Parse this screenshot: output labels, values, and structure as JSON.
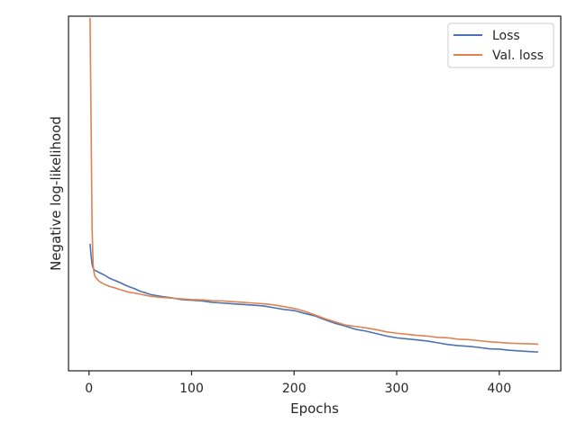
{
  "chart_data": {
    "type": "line",
    "title": "",
    "xlabel": "Epochs",
    "ylabel": "Negative log-likelihood",
    "xlim": [
      -20,
      460
    ],
    "xticks": [
      0,
      100,
      200,
      300,
      400
    ],
    "ylim": [
      0,
      1
    ],
    "yticks_visible": false,
    "grid": false,
    "legend_position": "top-right",
    "series": [
      {
        "name": "Loss",
        "color": "#4c72b0",
        "x": [
          1,
          2,
          3,
          4,
          5,
          6,
          8,
          10,
          15,
          20,
          25,
          30,
          35,
          40,
          45,
          50,
          55,
          60,
          70,
          80,
          90,
          100,
          110,
          120,
          130,
          140,
          150,
          160,
          170,
          180,
          190,
          200,
          210,
          220,
          230,
          240,
          250,
          260,
          270,
          280,
          290,
          300,
          310,
          320,
          330,
          340,
          350,
          360,
          370,
          380,
          390,
          400,
          410,
          420,
          430,
          438
        ],
        "y": [
          0.358,
          0.325,
          0.3,
          0.29,
          0.285,
          0.283,
          0.28,
          0.277,
          0.27,
          0.261,
          0.255,
          0.249,
          0.242,
          0.236,
          0.231,
          0.224,
          0.22,
          0.215,
          0.21,
          0.206,
          0.201,
          0.199,
          0.197,
          0.193,
          0.191,
          0.189,
          0.187,
          0.185,
          0.183,
          0.178,
          0.173,
          0.17,
          0.162,
          0.155,
          0.144,
          0.134,
          0.126,
          0.117,
          0.112,
          0.105,
          0.098,
          0.093,
          0.09,
          0.087,
          0.084,
          0.079,
          0.074,
          0.071,
          0.069,
          0.066,
          0.062,
          0.061,
          0.058,
          0.056,
          0.054,
          0.053
        ]
      },
      {
        "name": "Val. loss",
        "color": "#dd8452",
        "x": [
          1,
          2,
          3,
          4,
          5,
          6,
          8,
          10,
          15,
          20,
          25,
          30,
          35,
          40,
          45,
          50,
          55,
          60,
          70,
          80,
          90,
          100,
          110,
          120,
          130,
          140,
          150,
          160,
          170,
          180,
          190,
          200,
          210,
          220,
          230,
          240,
          250,
          260,
          270,
          280,
          290,
          300,
          310,
          320,
          330,
          340,
          350,
          360,
          370,
          380,
          390,
          400,
          410,
          420,
          430,
          438
        ],
        "y": [
          0.995,
          0.7,
          0.4,
          0.3,
          0.275,
          0.265,
          0.258,
          0.252,
          0.244,
          0.238,
          0.234,
          0.229,
          0.225,
          0.221,
          0.219,
          0.216,
          0.213,
          0.21,
          0.207,
          0.205,
          0.203,
          0.201,
          0.2,
          0.198,
          0.197,
          0.195,
          0.193,
          0.191,
          0.189,
          0.186,
          0.181,
          0.176,
          0.168,
          0.158,
          0.147,
          0.138,
          0.129,
          0.125,
          0.121,
          0.116,
          0.11,
          0.106,
          0.103,
          0.1,
          0.098,
          0.094,
          0.093,
          0.089,
          0.088,
          0.085,
          0.082,
          0.08,
          0.078,
          0.077,
          0.076,
          0.075
        ]
      }
    ]
  }
}
